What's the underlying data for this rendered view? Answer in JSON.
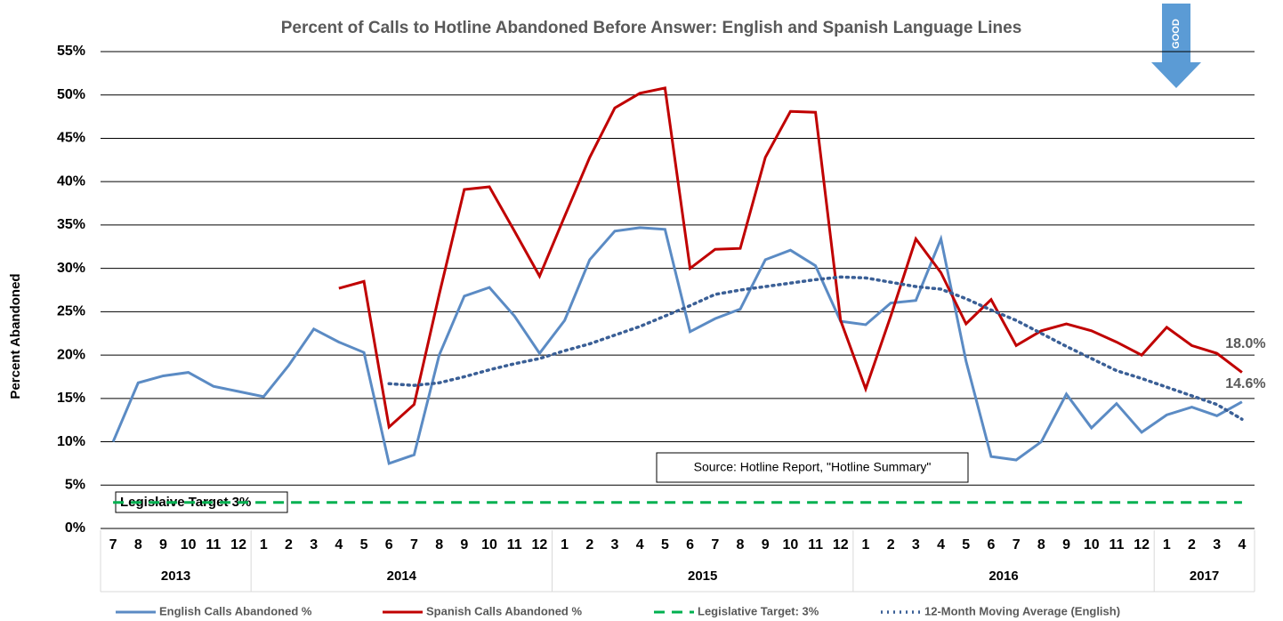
{
  "chart_data": {
    "type": "line",
    "title": "Percent of Calls to Hotline Abandoned Before Answer: English and Spanish Language Lines",
    "y_label": "Percent Abandoned",
    "groups": [
      {
        "label": "2013",
        "categories": [
          "7",
          "8",
          "9",
          "10",
          "11",
          "12"
        ]
      },
      {
        "label": "2014",
        "categories": [
          "1",
          "2",
          "3",
          "4",
          "5",
          "6",
          "7",
          "8",
          "9",
          "10",
          "11",
          "12"
        ]
      },
      {
        "label": "2015",
        "categories": [
          "1",
          "2",
          "3",
          "4",
          "5",
          "6",
          "7",
          "8",
          "9",
          "10",
          "11",
          "12"
        ]
      },
      {
        "label": "2016",
        "categories": [
          "1",
          "2",
          "3",
          "4",
          "5",
          "6",
          "7",
          "8",
          "9",
          "10",
          "11",
          "12"
        ]
      },
      {
        "label": "2017",
        "categories": [
          "1",
          "2",
          "3",
          "4"
        ]
      }
    ],
    "series": [
      {
        "name": "English Calls Abandoned %",
        "color": "#5b8bc4",
        "style": "solid",
        "values": [
          10.0,
          16.8,
          17.6,
          18.0,
          16.4,
          15.8,
          15.2,
          18.8,
          23.0,
          21.5,
          20.3,
          7.5,
          8.5,
          20.0,
          26.8,
          27.8,
          24.5,
          20.2,
          24.0,
          31.0,
          34.3,
          34.7,
          34.5,
          22.7,
          24.2,
          25.3,
          31.0,
          32.1,
          30.3,
          23.9,
          23.5,
          26.0,
          26.3,
          33.4,
          19.3,
          8.3,
          7.9,
          10.0,
          15.5,
          11.6,
          14.4,
          11.1,
          13.1,
          14.0,
          13.0,
          14.6
        ],
        "value_labels": [
          null,
          null,
          null,
          null,
          null,
          null,
          null,
          null,
          null,
          null,
          null,
          null,
          null,
          null,
          null,
          null,
          null,
          null,
          null,
          null,
          null,
          null,
          null,
          null,
          null,
          null,
          null,
          null,
          null,
          null,
          null,
          null,
          null,
          null,
          null,
          null,
          null,
          null,
          null,
          null,
          null,
          null,
          null,
          null,
          null,
          "14.6%"
        ]
      },
      {
        "name": "Spanish Calls Abandoned %",
        "color": "#c00000",
        "style": "solid",
        "values": [
          null,
          null,
          null,
          null,
          null,
          null,
          null,
          null,
          null,
          27.7,
          28.5,
          11.7,
          14.3,
          27.0,
          39.1,
          39.4,
          34.3,
          29.1,
          36.0,
          42.8,
          48.5,
          50.2,
          50.8,
          30.0,
          32.2,
          32.3,
          42.8,
          48.1,
          48.0,
          24.0,
          16.1,
          24.5,
          33.4,
          29.5,
          23.6,
          26.4,
          21.1,
          22.8,
          23.6,
          22.8,
          21.5,
          20.0,
          23.2,
          21.1,
          20.2,
          18.0
        ],
        "value_labels": [
          null,
          null,
          null,
          null,
          null,
          null,
          null,
          null,
          null,
          null,
          null,
          null,
          null,
          null,
          null,
          null,
          null,
          null,
          null,
          null,
          null,
          null,
          null,
          null,
          null,
          null,
          null,
          null,
          null,
          null,
          null,
          null,
          null,
          null,
          null,
          null,
          null,
          null,
          null,
          null,
          null,
          null,
          null,
          null,
          null,
          "18.0%"
        ]
      },
      {
        "name": "Legislative Target: 3%",
        "color": "#00b050",
        "style": "dashed",
        "value": 3
      },
      {
        "name": "12-Month Moving Average (English)",
        "color": "#3a5f96",
        "style": "dotted",
        "values": [
          null,
          null,
          null,
          null,
          null,
          null,
          null,
          null,
          null,
          null,
          null,
          16.7,
          16.5,
          16.8,
          17.5,
          18.3,
          19.0,
          19.6,
          20.5,
          21.3,
          22.3,
          23.3,
          24.5,
          25.7,
          27.0,
          27.5,
          27.9,
          28.3,
          28.7,
          29.0,
          28.9,
          28.4,
          27.9,
          27.6,
          26.5,
          25.2,
          24.0,
          22.5,
          21.0,
          19.6,
          18.2,
          17.3,
          16.3,
          15.3,
          14.3,
          12.6
        ]
      }
    ],
    "ylim": [
      0,
      55
    ],
    "yticks": [
      {
        "value": 0,
        "label": "0%"
      },
      {
        "value": 5,
        "label": "5%"
      },
      {
        "value": 10,
        "label": "10%"
      },
      {
        "value": 15,
        "label": "15%"
      },
      {
        "value": 20,
        "label": "20%"
      },
      {
        "value": 25,
        "label": "25%"
      },
      {
        "value": 30,
        "label": "30%"
      },
      {
        "value": 35,
        "label": "35%"
      },
      {
        "value": 40,
        "label": "40%"
      },
      {
        "value": 45,
        "label": "45%"
      },
      {
        "value": 50,
        "label": "50%"
      },
      {
        "value": 55,
        "label": "55%"
      }
    ],
    "grid": true,
    "legend": "bottom",
    "annotations": [
      "Legislaive Target 3%",
      "Source: Hotline Report, \"Hotline Summary\"",
      "GOOD"
    ]
  }
}
